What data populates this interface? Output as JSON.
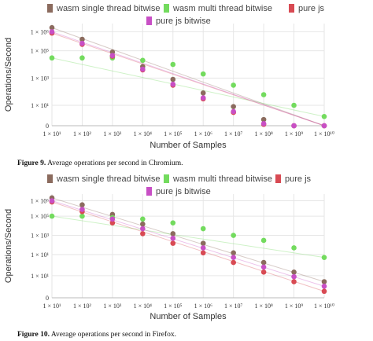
{
  "chart_data": [
    {
      "type": "scatter",
      "title": "",
      "xlabel": "Number of Samples",
      "ylabel": "Operations/Second",
      "x_scale": "log",
      "y_scale": "log",
      "x_ticks": [
        "1 × 10¹",
        "1 × 10²",
        "1 × 10³",
        "1 × 10⁴",
        "1 × 10⁵",
        "1 × 10⁶",
        "1 × 10⁷",
        "1 × 10⁸",
        "1 × 10⁹",
        "1 × 10¹⁰"
      ],
      "y_ticks": [
        "0",
        "1 × 10¹",
        "1 × 10³",
        "1 × 10⁵",
        "1 × 10⁶"
      ],
      "grid": true,
      "trendlines": true,
      "legend_position": "top",
      "x": [
        10,
        100,
        1000,
        10000,
        100000,
        1000000,
        10000000,
        100000000,
        1000000000,
        10000000000
      ],
      "series": [
        {
          "name": "wasm single thread bitwise",
          "color": "#8b6b5e",
          "values": [
            5000000,
            700000,
            80000,
            7000,
            800,
            80,
            8,
            0.9,
            0.1,
            0.012
          ]
        },
        {
          "name": "wasm multi thread bitwise",
          "color": "#73db5e",
          "values": [
            30000,
            30000,
            30000,
            20000,
            10000,
            2000,
            300,
            60,
            10,
            1.5
          ]
        },
        {
          "name": "pure js",
          "color": "#d84a53",
          "values": [
            2000000,
            300000,
            40000,
            4000,
            300,
            30,
            3,
            0.4,
            0.04,
            0.0004
          ]
        },
        {
          "name": "pure js bitwise",
          "color": "#c84fc5",
          "values": [
            2500000,
            350000,
            45000,
            4500,
            350,
            35,
            3.5,
            0.45,
            0.045,
            0.005
          ]
        }
      ]
    },
    {
      "type": "scatter",
      "title": "",
      "xlabel": "Number of Samples",
      "ylabel": "Operations/Second",
      "x_scale": "log",
      "y_scale": "log",
      "x_ticks": [
        "1 × 10¹",
        "1 × 10²",
        "1 × 10³",
        "1 × 10⁴",
        "1 × 10⁵",
        "1 × 10⁶",
        "1 × 10⁷",
        "1 × 10⁸",
        "1 × 10⁹",
        "1 × 10¹⁰"
      ],
      "y_ticks": [
        "0",
        "1 × 10¹",
        "1 × 10¹",
        "1 × 10³",
        "1 × 10⁵",
        "1 × 10⁶"
      ],
      "grid": true,
      "trendlines": true,
      "legend_position": "top",
      "x": [
        10,
        100,
        1000,
        10000,
        100000,
        1000000,
        10000000,
        100000000,
        1000000000,
        10000000000
      ],
      "series": [
        {
          "name": "wasm single thread bitwise",
          "color": "#8b6b5e",
          "values": [
            8000000,
            1500000,
            150000,
            15000,
            1500,
            150,
            15,
            1.5,
            0.15,
            0.015
          ]
        },
        {
          "name": "wasm multi thread bitwise",
          "color": "#73db5e",
          "values": [
            100000,
            100000,
            70000,
            50000,
            20000,
            5000,
            1000,
            300,
            50,
            5
          ]
        },
        {
          "name": "pure js",
          "color": "#d84a53",
          "values": [
            3000000,
            300000,
            20000,
            1500,
            150,
            15,
            1.5,
            0.15,
            0.015,
            0.0015
          ]
        },
        {
          "name": "pure js bitwise",
          "color": "#c84fc5",
          "values": [
            4000000,
            500000,
            50000,
            5000,
            500,
            50,
            5,
            0.5,
            0.05,
            0.005
          ]
        }
      ]
    }
  ],
  "captions": [
    {
      "label": "Figure 9.",
      "text": "Average operations per second in Chromium."
    },
    {
      "label": "Figure 10.",
      "text": "Average operations per second in Firefox."
    }
  ]
}
